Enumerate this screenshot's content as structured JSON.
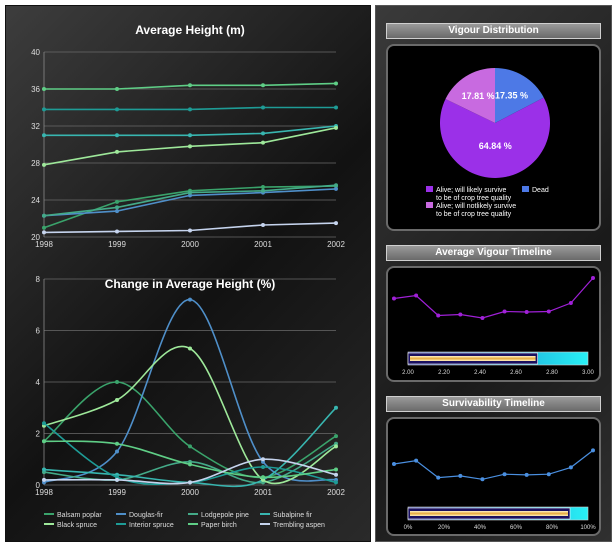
{
  "colors": {
    "balsam": "#3aa36b",
    "douglas": "#4f8fc9",
    "lodgepole": "#44aa88",
    "subalpine": "#38b6b0",
    "black_spruce": "#9ee89a",
    "interior": "#1e9c96",
    "paper_birch": "#5fce86",
    "trembling": "#c6d4ee",
    "pie_alive_likely": "#9b30e8",
    "pie_alive_not": "#c86ae0",
    "pie_dead": "#4d79e6",
    "vigour_line": "#a020d8",
    "surv_line": "#4a8fe0"
  },
  "legend": [
    {
      "name": "Balsam poplar",
      "key": "balsam"
    },
    {
      "name": "Douglas-fir",
      "key": "douglas"
    },
    {
      "name": "Lodgepole pine",
      "key": "lodgepole"
    },
    {
      "name": "Subalpine fir",
      "key": "subalpine"
    },
    {
      "name": "Black spruce",
      "key": "black_spruce"
    },
    {
      "name": "Interior spruce",
      "key": "interior"
    },
    {
      "name": "Paper birch",
      "key": "paper_birch"
    },
    {
      "name": "Trembling aspen",
      "key": "trembling"
    }
  ],
  "chart_data": [
    {
      "type": "line",
      "title": "Average Height (m)",
      "x": [
        "1998",
        "1999",
        "2000",
        "2001",
        "2002"
      ],
      "ylim": [
        20,
        40
      ],
      "yticks": [
        20,
        24,
        28,
        32,
        36,
        40
      ],
      "grid": true,
      "series": [
        {
          "name": "Balsam poplar",
          "key": "balsam",
          "values": [
            21.0,
            23.8,
            25.0,
            25.4,
            25.5
          ]
        },
        {
          "name": "Douglas-fir",
          "key": "douglas",
          "values": [
            22.3,
            22.8,
            24.5,
            24.8,
            25.2
          ]
        },
        {
          "name": "Lodgepole pine",
          "key": "lodgepole",
          "values": [
            22.3,
            23.2,
            24.8,
            25.0,
            25.6
          ]
        },
        {
          "name": "Subalpine fir",
          "key": "subalpine",
          "values": [
            31.0,
            31.0,
            31.0,
            31.2,
            32.0
          ]
        },
        {
          "name": "Black spruce",
          "key": "black_spruce",
          "values": [
            27.8,
            29.2,
            29.8,
            30.2,
            31.8
          ]
        },
        {
          "name": "Interior spruce",
          "key": "interior",
          "values": [
            33.8,
            33.8,
            33.8,
            34.0,
            34.0
          ]
        },
        {
          "name": "Paper birch",
          "key": "paper_birch",
          "values": [
            36.0,
            36.0,
            36.4,
            36.4,
            36.6
          ]
        },
        {
          "name": "Trembling aspen",
          "key": "trembling",
          "values": [
            20.5,
            20.6,
            20.7,
            21.3,
            21.5
          ]
        }
      ]
    },
    {
      "type": "line",
      "title": "Change in Average Height (%)",
      "x": [
        "1998",
        "1999",
        "2000",
        "2001",
        "2002"
      ],
      "ylim": [
        0,
        8
      ],
      "yticks": [
        0,
        2,
        4,
        6,
        8
      ],
      "grid": true,
      "legend_position": "bottom",
      "series": [
        {
          "name": "Balsam poplar",
          "key": "balsam",
          "values": [
            1.7,
            4.0,
            1.5,
            0.3,
            1.9
          ]
        },
        {
          "name": "Douglas-fir",
          "key": "douglas",
          "values": [
            0.1,
            1.3,
            7.2,
            0.9,
            0.2
          ]
        },
        {
          "name": "Lodgepole pine",
          "key": "lodgepole",
          "values": [
            0.5,
            0.2,
            0.9,
            0.1,
            1.6
          ]
        },
        {
          "name": "Subalpine fir",
          "key": "subalpine",
          "values": [
            0.6,
            0.4,
            0.1,
            0.2,
            3.0
          ]
        },
        {
          "name": "Black spruce",
          "key": "black_spruce",
          "values": [
            2.3,
            3.3,
            5.3,
            0.2,
            1.5
          ]
        },
        {
          "name": "Interior spruce",
          "key": "interior",
          "values": [
            2.4,
            0.3,
            0.1,
            0.7,
            0.1
          ]
        },
        {
          "name": "Paper birch",
          "key": "paper_birch",
          "values": [
            1.7,
            1.6,
            0.8,
            0.3,
            0.6
          ]
        },
        {
          "name": "Trembling aspen",
          "key": "trembling",
          "values": [
            0.2,
            0.2,
            0.1,
            1.0,
            0.4
          ]
        }
      ]
    },
    {
      "type": "pie",
      "title": "Vigour Distribution",
      "slices": [
        {
          "label": "Alive; will likely survive to be of crop tree quality",
          "value": 64.84,
          "display": "64.84 %",
          "key": "pie_alive_likely"
        },
        {
          "label": "Alive; will notlikely survive to be of crop tree quality",
          "value": 17.81,
          "display": "17.81 %",
          "key": "pie_alive_not"
        },
        {
          "label": "Dead",
          "value": 17.35,
          "display": "17.35 %",
          "key": "pie_dead"
        }
      ]
    },
    {
      "type": "line",
      "title": "Average Vigour Timeline",
      "values": [
        0.59,
        0.65,
        0.25,
        0.27,
        0.2,
        0.33,
        0.32,
        0.33,
        0.5,
        1.0
      ],
      "xlim": [
        2.0,
        3.0
      ],
      "xticks": [
        "2.00",
        "2.20",
        "2.40",
        "2.60",
        "2.80",
        "3.00"
      ],
      "bar_value": 2.72
    },
    {
      "type": "line",
      "title": "Survivability Timeline",
      "values": [
        0.5,
        0.6,
        0.1,
        0.15,
        0.05,
        0.2,
        0.18,
        0.2,
        0.4,
        0.9
      ],
      "xlim": [
        0,
        100
      ],
      "xticks": [
        "0%",
        "20%",
        "40%",
        "60%",
        "80%",
        "100%"
      ],
      "bar_value": 90
    }
  ]
}
